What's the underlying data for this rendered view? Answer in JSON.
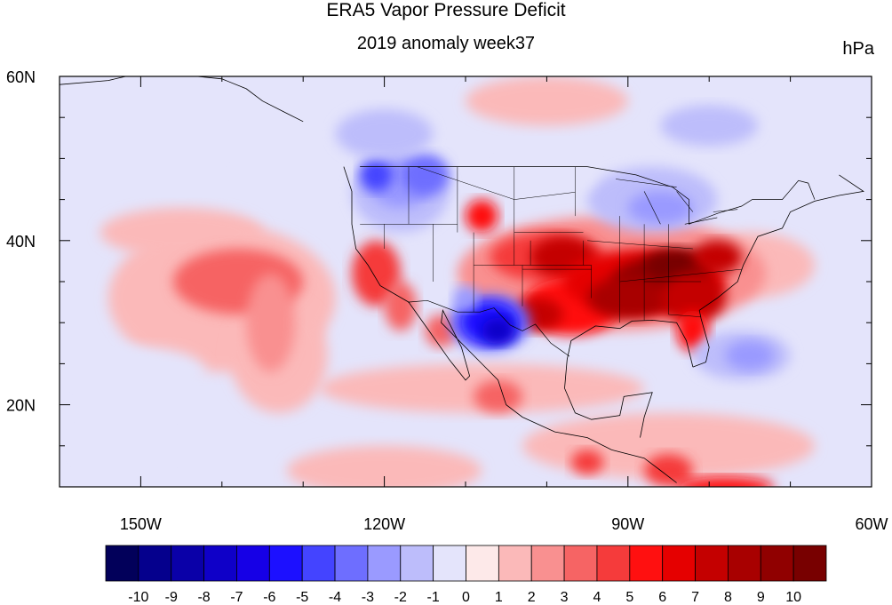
{
  "chart_data": {
    "type": "heatmap",
    "title": "ERA5 Vapor Pressure Deficit",
    "subtitle": "2019 anomaly week37",
    "units": "hPa",
    "map_region": "North America and eastern Pacific",
    "xlim": [
      -160,
      -60
    ],
    "ylim": [
      10,
      60
    ],
    "x_ticks": [
      {
        "value": -150,
        "label": "150W"
      },
      {
        "value": -120,
        "label": "120W"
      },
      {
        "value": -90,
        "label": "90W"
      },
      {
        "value": -60,
        "label": "60W"
      }
    ],
    "y_ticks": [
      {
        "value": 20,
        "label": "20N"
      },
      {
        "value": 40,
        "label": "40N"
      },
      {
        "value": 60,
        "label": "60N"
      }
    ],
    "colorbar": {
      "labels": [
        "-10",
        "-9",
        "-8",
        "-7",
        "-6",
        "-5",
        "-4",
        "-3",
        "-2",
        "-1",
        "0",
        "1",
        "2",
        "3",
        "4",
        "5",
        "6",
        "7",
        "8",
        "9",
        "10"
      ],
      "colors": [
        "#02005a",
        "#05008d",
        "#0a00a8",
        "#0f00c8",
        "#1600e6",
        "#1c10ff",
        "#4444ff",
        "#6e6eff",
        "#9a9aff",
        "#bdbdfb",
        "#e4e4fb",
        "#fde9e9",
        "#fbb9b9",
        "#f99090",
        "#f66464",
        "#f53b3b",
        "#ff1010",
        "#e50000",
        "#c40000",
        "#a80000",
        "#900000",
        "#780000"
      ]
    },
    "features": [
      {
        "label": "strong positive anomaly",
        "value": 10,
        "lon": -88,
        "lat": 34
      },
      {
        "label": "strong positive anomaly",
        "value": 8,
        "lon": -98,
        "lat": 38
      },
      {
        "label": "positive anomaly",
        "value": 6,
        "lon": -102,
        "lat": 31
      },
      {
        "label": "positive anomaly",
        "value": 4,
        "lon": -138,
        "lat": 35
      },
      {
        "label": "positive anomaly",
        "value": 5,
        "lon": -121,
        "lat": 36
      },
      {
        "label": "strong negative anomaly",
        "value": -8,
        "lon": -107,
        "lat": 30
      },
      {
        "label": "negative anomaly",
        "value": -4,
        "lon": -118,
        "lat": 46
      },
      {
        "label": "negative anomaly",
        "value": -3,
        "lon": -86,
        "lat": 44
      },
      {
        "label": "negative anomaly",
        "value": -3,
        "lon": -76,
        "lat": 26
      }
    ]
  }
}
